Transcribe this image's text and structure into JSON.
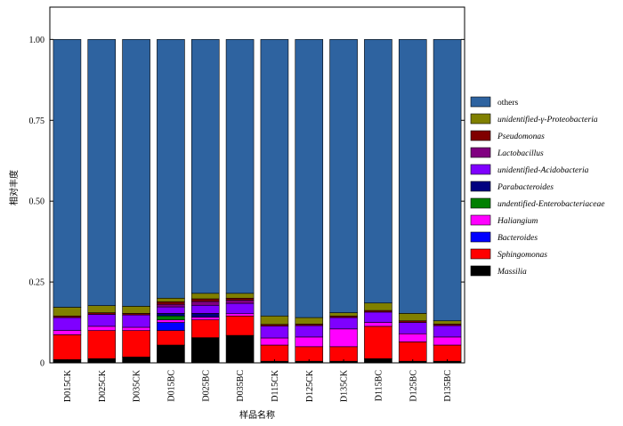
{
  "chart_data": {
    "type": "bar",
    "stacked": true,
    "xlabel": "样品名称",
    "ylabel": "相对丰度",
    "ylim": [
      0,
      1.1
    ],
    "yticks": [
      "0",
      "0.25",
      "0.50",
      "0.75",
      "1.00"
    ],
    "yticks_values": [
      0,
      0.25,
      0.5,
      0.75,
      1.0
    ],
    "legend_position": "right",
    "categories": [
      "D015CK",
      "D025CK",
      "D035CK",
      "D015BC",
      "D025BC",
      "D035BC",
      "D115CK",
      "D125CK",
      "D135CK",
      "D115BC",
      "D125BC",
      "D135BC"
    ],
    "series": [
      {
        "name": "Massilia",
        "italic": true,
        "color": "#000000",
        "values": [
          0.01,
          0.013,
          0.018,
          0.055,
          0.078,
          0.085,
          0.005,
          0.005,
          0.005,
          0.013,
          0.005,
          0.005
        ]
      },
      {
        "name": "Sphingomonas",
        "italic": true,
        "color": "#ff0000",
        "values": [
          0.077,
          0.087,
          0.082,
          0.045,
          0.055,
          0.06,
          0.05,
          0.045,
          0.045,
          0.1,
          0.06,
          0.05
        ]
      },
      {
        "name": "Bacteroides",
        "italic": true,
        "color": "#0000ff",
        "values": [
          0.0,
          0.0,
          0.0,
          0.025,
          0.0,
          0.0,
          0.0,
          0.0,
          0.0,
          0.0,
          0.0,
          0.0
        ]
      },
      {
        "name": "Haliangium",
        "italic": true,
        "color": "#ff00ff",
        "values": [
          0.013,
          0.013,
          0.01,
          0.008,
          0.008,
          0.007,
          0.022,
          0.03,
          0.055,
          0.012,
          0.025,
          0.025
        ]
      },
      {
        "name": "undentified-Enterobacteriaceae",
        "italic": true,
        "color": "#008000",
        "values": [
          0.0,
          0.0,
          0.0,
          0.012,
          0.0,
          0.0,
          0.0,
          0.0,
          0.0,
          0.0,
          0.0,
          0.0
        ]
      },
      {
        "name": "Parabacteroides",
        "italic": true,
        "color": "#000080",
        "values": [
          0.0,
          0.0,
          0.0,
          0.008,
          0.012,
          0.0,
          0.0,
          0.0,
          0.0,
          0.0,
          0.0,
          0.0
        ]
      },
      {
        "name": "unidentified-Acidobacteria",
        "italic": true,
        "color": "#7f00ff",
        "values": [
          0.04,
          0.037,
          0.038,
          0.02,
          0.025,
          0.032,
          0.037,
          0.035,
          0.035,
          0.032,
          0.035,
          0.035
        ]
      },
      {
        "name": "Lactobacillus",
        "italic": true,
        "color": "#800080",
        "values": [
          0.0,
          0.0,
          0.0,
          0.008,
          0.012,
          0.01,
          0.0,
          0.0,
          0.0,
          0.0,
          0.0,
          0.0
        ]
      },
      {
        "name": "Pseudomonas",
        "italic": true,
        "color": "#800000",
        "values": [
          0.005,
          0.005,
          0.005,
          0.008,
          0.008,
          0.006,
          0.005,
          0.005,
          0.005,
          0.005,
          0.005,
          0.005
        ]
      },
      {
        "name": "unidentified-γ-Proteobacteria",
        "italic": true,
        "color": "#808000",
        "values": [
          0.027,
          0.022,
          0.022,
          0.011,
          0.017,
          0.015,
          0.026,
          0.02,
          0.01,
          0.023,
          0.023,
          0.01
        ]
      },
      {
        "name": "others",
        "italic": false,
        "color": "#2e63a0",
        "values": [
          0.828,
          0.823,
          0.825,
          0.8,
          0.785,
          0.785,
          0.855,
          0.86,
          0.845,
          0.815,
          0.847,
          0.87
        ]
      }
    ]
  }
}
